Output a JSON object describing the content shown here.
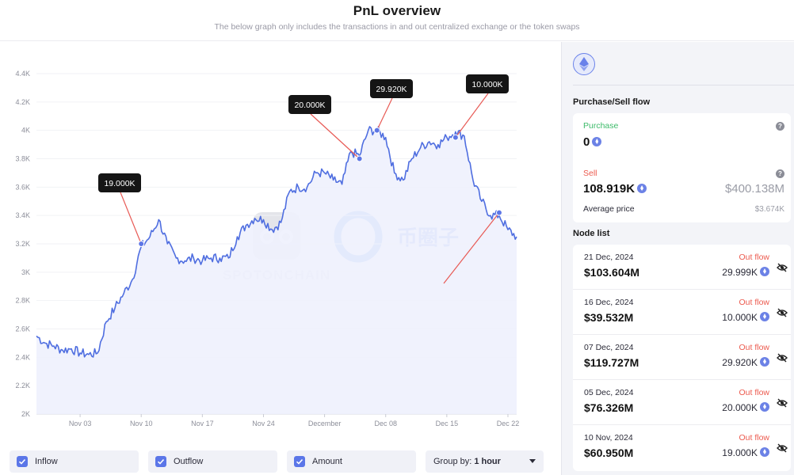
{
  "header": {
    "title": "PnL overview",
    "subtitle": "The below graph only includes the transactions in and out centralized exchange or the token swaps"
  },
  "chart_data": {
    "type": "area",
    "y_ticks": [
      "2K",
      "2.2K",
      "2.4K",
      "2.6K",
      "2.8K",
      "3K",
      "3.2K",
      "3.4K",
      "3.6K",
      "3.8K",
      "4K",
      "4.2K",
      "4.4K"
    ],
    "x_ticks": [
      "Nov 03",
      "Nov 10",
      "Nov 17",
      "Nov 24",
      "December",
      "Dec 08",
      "Dec 15",
      "Dec 22"
    ],
    "ylim": [
      2000,
      4400
    ],
    "xlim_days": [
      "Oct 29",
      "Dec 23"
    ],
    "series": [
      {
        "points": [
          [
            "Oct 29",
            2550
          ],
          [
            "Oct 30",
            2500
          ],
          [
            "Oct 31",
            2480
          ],
          [
            "Nov 01",
            2450
          ],
          [
            "Nov 02",
            2460
          ],
          [
            "Nov 03",
            2430
          ],
          [
            "Nov 04",
            2420
          ],
          [
            "Nov 05",
            2430
          ],
          [
            "Nov 06",
            2650
          ],
          [
            "Nov 07",
            2750
          ],
          [
            "Nov 08",
            2850
          ],
          [
            "Nov 09",
            2950
          ],
          [
            "Nov 10",
            3180
          ],
          [
            "Nov 11",
            3250
          ],
          [
            "Nov 12",
            3370
          ],
          [
            "Nov 13",
            3200
          ],
          [
            "Nov 14",
            3100
          ],
          [
            "Nov 15",
            3080
          ],
          [
            "Nov 16",
            3100
          ],
          [
            "Nov 17",
            3080
          ],
          [
            "Nov 18",
            3100
          ],
          [
            "Nov 19",
            3100
          ],
          [
            "Nov 20",
            3100
          ],
          [
            "Nov 21",
            3250
          ],
          [
            "Nov 22",
            3330
          ],
          [
            "Nov 23",
            3380
          ],
          [
            "Nov 24",
            3370
          ],
          [
            "Nov 25",
            3300
          ],
          [
            "Nov 26",
            3350
          ],
          [
            "Nov 27",
            3570
          ],
          [
            "Nov 28",
            3600
          ],
          [
            "Nov 29",
            3600
          ],
          [
            "Nov 30",
            3700
          ],
          [
            "Dec 01",
            3700
          ],
          [
            "Dec 02",
            3650
          ],
          [
            "Dec 03",
            3620
          ],
          [
            "Dec 04",
            3850
          ],
          [
            "Dec 05",
            3820
          ],
          [
            "Dec 06",
            4000
          ],
          [
            "Dec 07",
            4000
          ],
          [
            "Dec 08",
            3950
          ],
          [
            "Dec 09",
            3700
          ],
          [
            "Dec 10",
            3650
          ],
          [
            "Dec 11",
            3800
          ],
          [
            "Dec 12",
            3880
          ],
          [
            "Dec 13",
            3920
          ],
          [
            "Dec 14",
            3900
          ],
          [
            "Dec 15",
            3950
          ],
          [
            "Dec 16",
            3990
          ],
          [
            "Dec 17",
            3960
          ],
          [
            "Dec 18",
            3650
          ],
          [
            "Dec 19",
            3500
          ],
          [
            "Dec 20",
            3400
          ],
          [
            "Dec 21",
            3400
          ],
          [
            "Dec 22",
            3300
          ],
          [
            "Dec 23",
            3250
          ]
        ]
      }
    ],
    "annotations": [
      {
        "label": "19.000K",
        "date": "Nov 10",
        "value": 3200
      },
      {
        "label": "20.000K",
        "date": "Dec 05",
        "value": 3800
      },
      {
        "label": "29.920K",
        "date": "Dec 07",
        "value": 4000
      },
      {
        "label": "10.000K",
        "date": "Dec 16",
        "value": 3950
      }
    ],
    "colors": {
      "line": "#4f6ee0",
      "area": "#eef1fd",
      "label_bg": "#151515"
    },
    "watermark": "SPOTONCHAIN",
    "watermark2": "币圈子"
  },
  "controls": {
    "inflow": "Inflow",
    "outflow": "Outflow",
    "amount": "Amount",
    "group_by_label": "Group by:",
    "group_by_value": "1 hour"
  },
  "side": {
    "token_icon": "eth-icon",
    "flow_title": "Purchase/Sell flow",
    "purchase_label": "Purchase",
    "purchase_value": "0",
    "sell_label": "Sell",
    "sell_value": "108.919K",
    "sell_usd": "$400.138M",
    "avg_label": "Average price",
    "avg_value": "$3.674K",
    "node_title": "Node list",
    "nodes": [
      {
        "date": "21 Dec, 2024",
        "flow": "Out flow",
        "value": "$103.604M",
        "amount": "29.999K"
      },
      {
        "date": "16 Dec, 2024",
        "flow": "Out flow",
        "value": "$39.532M",
        "amount": "10.000K"
      },
      {
        "date": "07 Dec, 2024",
        "flow": "Out flow",
        "value": "$119.727M",
        "amount": "29.920K"
      },
      {
        "date": "05 Dec, 2024",
        "flow": "Out flow",
        "value": "$76.326M",
        "amount": "20.000K"
      },
      {
        "date": "10 Nov, 2024",
        "flow": "Out flow",
        "value": "$60.950M",
        "amount": "19.000K"
      }
    ]
  }
}
